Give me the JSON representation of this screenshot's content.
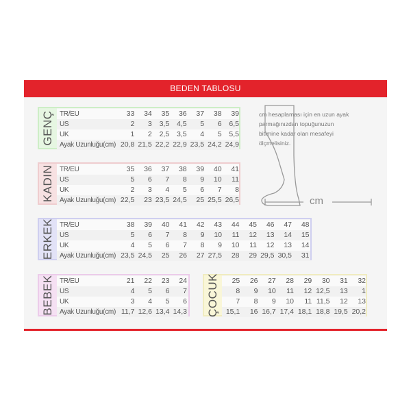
{
  "title": "BEDEN TABLOSU",
  "colors": {
    "accent": "#e3232b"
  },
  "note": "cm hesaplaması için en uzun ayak parmağınızdan topuğunuzun bitimine kadar olan mesafeyi ölçmelisiniz.",
  "cm_label": "cm",
  "tables": [
    {
      "name": "GENÇ",
      "color": "#e6f6e2",
      "border": "#cdeec6",
      "rows": [
        {
          "label": "TR/EU",
          "values": [
            "33",
            "34",
            "35",
            "36",
            "37",
            "38",
            "39"
          ]
        },
        {
          "label": "US",
          "values": [
            "2",
            "3",
            "3,5",
            "4,5",
            "5",
            "6",
            "6,5"
          ]
        },
        {
          "label": "UK",
          "values": [
            "1",
            "2",
            "2,5",
            "3,5",
            "4",
            "5",
            "5,5"
          ]
        },
        {
          "label": "Ayak Uzunluğu(cm)",
          "values": [
            "20,8",
            "21,5",
            "22,2",
            "22,9",
            "23,5",
            "24,2",
            "24,9"
          ]
        }
      ]
    },
    {
      "name": "KADIN",
      "color": "#f7e1e2",
      "border": "#efcdcf",
      "rows": [
        {
          "label": "TR/EU",
          "values": [
            "35",
            "36",
            "37",
            "38",
            "39",
            "40",
            "41"
          ]
        },
        {
          "label": "US",
          "values": [
            "5",
            "6",
            "7",
            "8",
            "9",
            "10",
            "11"
          ]
        },
        {
          "label": "UK",
          "values": [
            "2",
            "3",
            "4",
            "5",
            "6",
            "7",
            "8"
          ]
        },
        {
          "label": "Ayak Uzunluğu(cm)",
          "values": [
            "22,5",
            "23",
            "23,5",
            "24,5",
            "25",
            "25,5",
            "26,5"
          ]
        }
      ]
    },
    {
      "name": "ERKEK",
      "color": "#e2e2f7",
      "border": "#cfcff0",
      "rows": [
        {
          "label": "TR/EU",
          "values": [
            "38",
            "39",
            "40",
            "41",
            "42",
            "43",
            "44",
            "45",
            "46",
            "47",
            "48"
          ]
        },
        {
          "label": "US",
          "values": [
            "5",
            "6",
            "7",
            "8",
            "9",
            "10",
            "11",
            "12",
            "13",
            "14",
            "15"
          ]
        },
        {
          "label": "UK",
          "values": [
            "4",
            "5",
            "6",
            "7",
            "8",
            "9",
            "10",
            "11",
            "12",
            "13",
            "14"
          ]
        },
        {
          "label": "Ayak Uzunluğu(cm)",
          "values": [
            "23,5",
            "24,5",
            "25",
            "26",
            "27",
            "27,5",
            "28",
            "29",
            "29,5",
            "30,5",
            "31"
          ]
        }
      ]
    },
    {
      "name": "BEBEK",
      "color": "#f5e0f3",
      "border": "#ecccea",
      "rows": [
        {
          "label": "TR/EU",
          "values": [
            "21",
            "22",
            "23",
            "24"
          ]
        },
        {
          "label": "US",
          "values": [
            "4",
            "5",
            "6",
            "7"
          ]
        },
        {
          "label": "UK",
          "values": [
            "3",
            "4",
            "5",
            "6"
          ]
        },
        {
          "label": "Ayak Uzunluğu(cm)",
          "values": [
            "11,7",
            "12,6",
            "13,4",
            "14,3"
          ]
        }
      ]
    },
    {
      "name": "ÇOCUK",
      "color": "#f9f6d8",
      "border": "#f0ecc0",
      "rows": [
        {
          "label": "",
          "values": [
            "25",
            "26",
            "27",
            "28",
            "29",
            "30",
            "31",
            "32"
          ]
        },
        {
          "label": "",
          "values": [
            "8",
            "9",
            "10",
            "11",
            "12",
            "12,5",
            "13",
            "1"
          ]
        },
        {
          "label": "",
          "values": [
            "7",
            "8",
            "9",
            "10",
            "11",
            "11,5",
            "12",
            "13"
          ]
        },
        {
          "label": "",
          "values": [
            "15,1",
            "16",
            "16,7",
            "17,4",
            "18,1",
            "18,8",
            "19,5",
            "20,2"
          ]
        }
      ]
    }
  ]
}
